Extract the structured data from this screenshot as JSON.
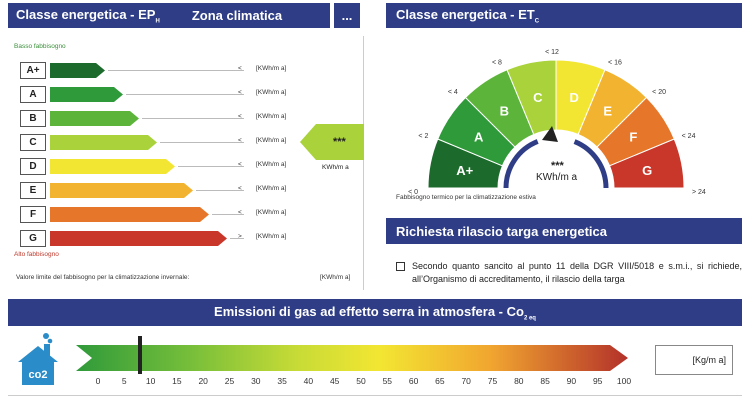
{
  "ep_header": {
    "title": "Classe energetica - EP",
    "title_sub": "H",
    "zona": "Zona climatica",
    "more": "..."
  },
  "et_header": {
    "title": "Classe energetica - ET",
    "title_sub": "C"
  },
  "ep": {
    "top_label": "Basso fabbisogno",
    "bottom_label": "Alto fabbisogno",
    "rows": [
      {
        "letter": "A+",
        "color": "#1d6b2c",
        "sym": "<",
        "unit": "[KWh/m a]"
      },
      {
        "letter": "A",
        "color": "#2f9a3a",
        "sym": "<",
        "unit": "[KWh/m a]"
      },
      {
        "letter": "B",
        "color": "#5cb53a",
        "sym": "<",
        "unit": "[KWh/m a]"
      },
      {
        "letter": "C",
        "color": "#a9d23b",
        "sym": "<",
        "unit": "[KWh/m a]"
      },
      {
        "letter": "D",
        "color": "#f3e632",
        "sym": "<",
        "unit": "[KWh/m a]"
      },
      {
        "letter": "E",
        "color": "#f1b330",
        "sym": "<",
        "unit": "[KWh/m a]"
      },
      {
        "letter": "F",
        "color": "#e6772a",
        "sym": "<",
        "unit": "[KWh/m a]"
      },
      {
        "letter": "G",
        "color": "#c8372a",
        "sym": ">",
        "unit": "[KWh/m a]"
      }
    ],
    "indicator_value": "***",
    "indicator_unit": "KWh/m a",
    "indicator_color": "#a9d23b",
    "limit_label": "Valore limite del fabbisogno per la climatizzazione invernale:",
    "limit_unit": "[KWh/m a]"
  },
  "et": {
    "segments": [
      {
        "letter": "A+",
        "color": "#1d6b2c"
      },
      {
        "letter": "A",
        "color": "#2f9a3a"
      },
      {
        "letter": "B",
        "color": "#5cb53a"
      },
      {
        "letter": "C",
        "color": "#a9d23b"
      },
      {
        "letter": "D",
        "color": "#f3e632"
      },
      {
        "letter": "E",
        "color": "#f1b330"
      },
      {
        "letter": "F",
        "color": "#e6772a"
      },
      {
        "letter": "G",
        "color": "#c8372a"
      }
    ],
    "thresholds": [
      "< 0",
      "< 2",
      "< 4",
      "< 8",
      "< 12",
      "< 16",
      "< 20",
      "< 24",
      "> 24"
    ],
    "value": "***",
    "unit": "KWh/m a",
    "caption": "Fabbisogno termico per la climatizzazione estiva"
  },
  "targa": {
    "title": "Richiesta rilascio targa energetica",
    "text": "Secondo quanto sancito al punto 11 della DGR VIII/5018 e s.m.i., si richiede, all’Organismo di accreditamento, il rilascio della targa"
  },
  "co2": {
    "title": "Emissioni di gas ad effetto serra in atmosfera - Co",
    "title_sub": "2 eq",
    "scale": [
      "0",
      "5",
      "10",
      "15",
      "20",
      "25",
      "30",
      "35",
      "40",
      "45",
      "50",
      "55",
      "60",
      "65",
      "70",
      "75",
      "80",
      "85",
      "90",
      "95",
      "100"
    ],
    "marker_value": 8,
    "unit": "[Kg/m a]",
    "icon_text": "co2"
  }
}
